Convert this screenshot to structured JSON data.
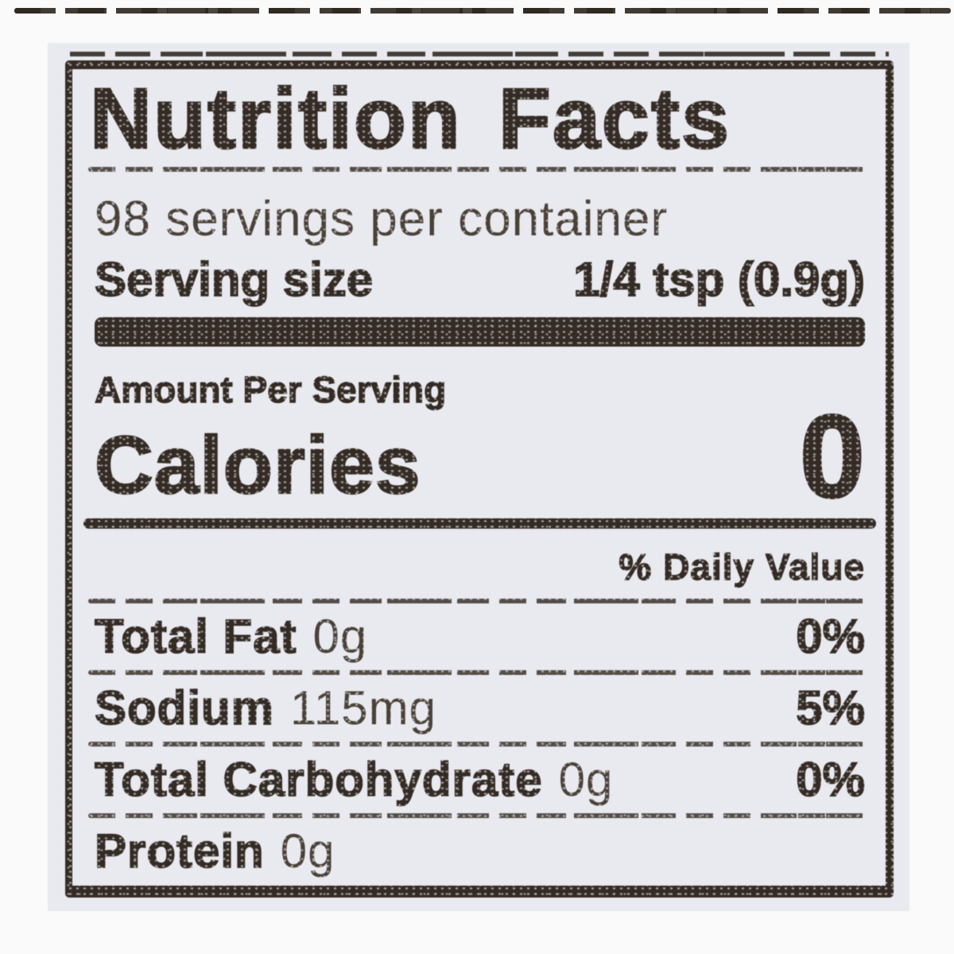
{
  "label": {
    "title": "Nutrition Facts",
    "servings_per_container": "98 servings per container",
    "serving_size": {
      "label": "Serving size",
      "value": "1/4 tsp (0.9g)"
    },
    "amount_per_serving": "Amount Per Serving",
    "calories": {
      "label": "Calories",
      "value": "0"
    },
    "daily_value_header": "% Daily Value",
    "nutrients": [
      {
        "name": "Total Fat",
        "amount": "0g",
        "daily_value": "0%"
      },
      {
        "name": "Sodium",
        "amount": "115mg",
        "daily_value": "5%"
      },
      {
        "name": "Total Carbohydrate",
        "amount": "0g",
        "daily_value": "0%"
      },
      {
        "name": "Protein",
        "amount": "0g",
        "daily_value": ""
      }
    ],
    "colors": {
      "ink": "#342b24",
      "paper": "#e9eaef",
      "background": "#fafafa"
    }
  }
}
